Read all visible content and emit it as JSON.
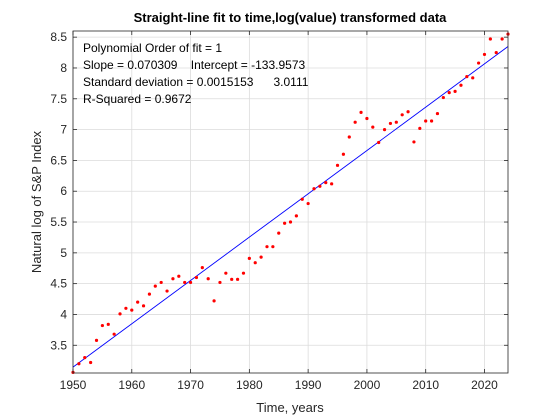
{
  "chart_data": {
    "type": "scatter",
    "title": "Straight-line fit to time,log(value) transformed data",
    "xlabel": "Time, years",
    "ylabel": "Natural log of S&P Index",
    "xlim": [
      1950,
      2024
    ],
    "ylim": [
      3.05,
      8.6
    ],
    "xticks": [
      1950,
      1960,
      1970,
      1980,
      1990,
      2000,
      2010,
      2020
    ],
    "yticks": [
      3.5,
      4,
      4.5,
      5,
      5.5,
      6,
      6.5,
      7,
      7.5,
      8,
      8.5
    ],
    "grid": true,
    "annotations": [
      "Polynomial Order of fit = 1",
      "Slope = 0.070309    Intercept = -133.9573",
      "Standard deviation = 0.0015153      3.0111",
      "R-Squared = 0.9672"
    ],
    "fit_line": {
      "slope": 0.070309,
      "intercept": -133.9573,
      "color": "#0000ff"
    },
    "series": [
      {
        "marker": "point",
        "color": "#ff0000",
        "x": [
          1950,
          1951,
          1952,
          1953,
          1954,
          1955,
          1956,
          1957,
          1958,
          1959,
          1960,
          1961,
          1962,
          1963,
          1964,
          1965,
          1966,
          1967,
          1968,
          1969,
          1970,
          1971,
          1972,
          1973,
          1974,
          1975,
          1976,
          1977,
          1978,
          1979,
          1980,
          1981,
          1982,
          1983,
          1984,
          1985,
          1986,
          1987,
          1988,
          1989,
          1990,
          1991,
          1992,
          1993,
          1994,
          1995,
          1996,
          1997,
          1998,
          1999,
          2000,
          2001,
          2002,
          2003,
          2004,
          2005,
          2006,
          2007,
          2008,
          2009,
          2010,
          2011,
          2012,
          2013,
          2014,
          2015,
          2016,
          2017,
          2018,
          2019,
          2020,
          2021,
          2022,
          2023,
          2024
        ],
        "y": [
          3.06,
          3.2,
          3.3,
          3.22,
          3.58,
          3.82,
          3.84,
          3.68,
          4.01,
          4.1,
          4.07,
          4.2,
          4.14,
          4.33,
          4.46,
          4.52,
          4.38,
          4.58,
          4.62,
          4.52,
          4.52,
          4.6,
          4.76,
          4.58,
          4.22,
          4.52,
          4.67,
          4.57,
          4.57,
          4.67,
          4.91,
          4.84,
          4.93,
          5.1,
          5.1,
          5.32,
          5.48,
          5.5,
          5.6,
          5.87,
          5.8,
          6.04,
          6.08,
          6.14,
          6.12,
          6.42,
          6.6,
          6.88,
          7.12,
          7.28,
          7.18,
          7.04,
          6.79,
          7.0,
          7.1,
          7.12,
          7.24,
          7.29,
          6.8,
          7.02,
          7.14,
          7.14,
          7.26,
          7.52,
          7.6,
          7.62,
          7.72,
          7.86,
          7.84,
          8.08,
          8.22,
          8.47,
          8.25,
          8.47,
          8.55
        ]
      }
    ]
  }
}
